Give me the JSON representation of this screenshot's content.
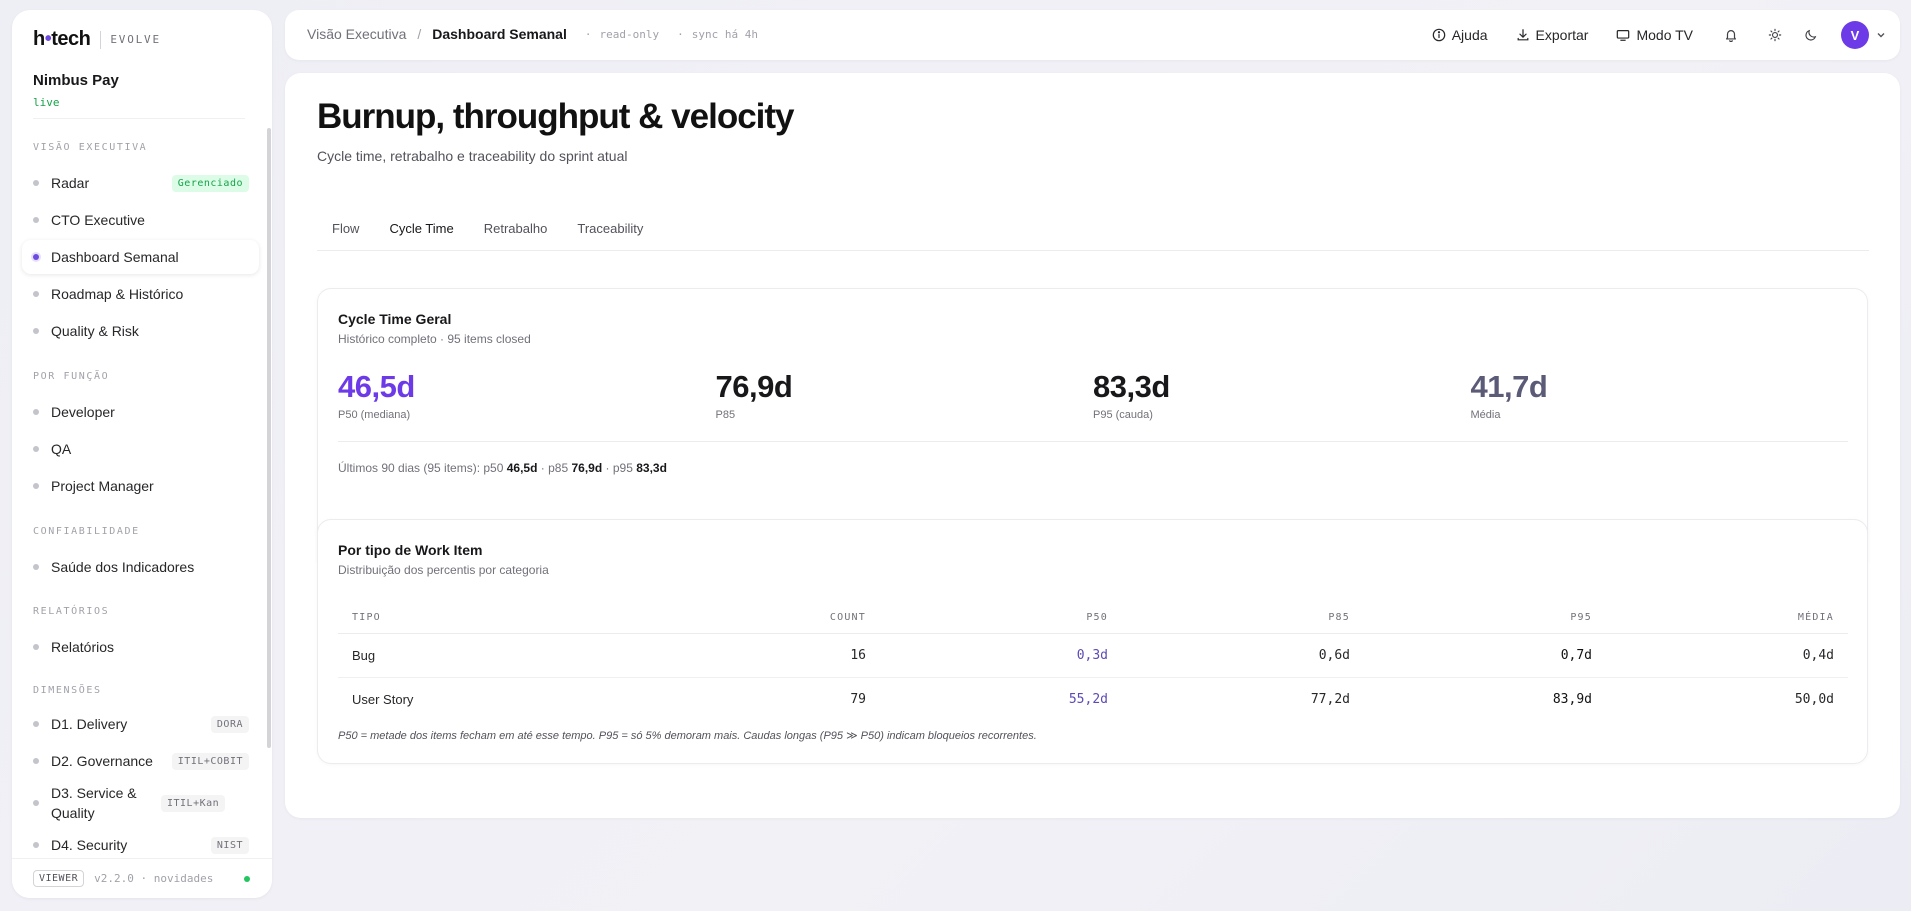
{
  "brand": {
    "logo_text": "h",
    "logo_dot": "•",
    "logo_rest": "tech",
    "suffix": "EVOLVE"
  },
  "org": {
    "name": "Nimbus Pay",
    "status": "live"
  },
  "sidebar": {
    "sections": [
      {
        "title": "VISÃO EXECUTIVA"
      },
      {
        "title": "POR FUNÇÃO"
      },
      {
        "title": "CONFIABILIDADE"
      },
      {
        "title": "RELATÓRIOS"
      },
      {
        "title": "DIMENSÕES"
      }
    ],
    "items": [
      {
        "label": "Radar",
        "badge": "Gerenciado"
      },
      {
        "label": "CTO Executive"
      },
      {
        "label": "Dashboard Semanal",
        "active": true
      },
      {
        "label": "Roadmap & Histórico"
      },
      {
        "label": "Quality & Risk"
      },
      {
        "label": "Developer"
      },
      {
        "label": "QA"
      },
      {
        "label": "Project Manager"
      },
      {
        "label": "Saúde dos Indicadores"
      },
      {
        "label": "Relatórios"
      },
      {
        "label": "D1. Delivery",
        "badge": "DORA"
      },
      {
        "label": "D2. Governance",
        "badge": "ITIL+COBIT"
      },
      {
        "label": "D3. Service & Quality",
        "badge": "ITIL+Kan"
      },
      {
        "label": "D4. Security",
        "badge": "NIST"
      }
    ],
    "footer": {
      "role": "VIEWER",
      "version": "v2.2.0 · novidades"
    }
  },
  "header": {
    "breadcrumb_parent": "Visão Executiva",
    "breadcrumb_sep": "/",
    "breadcrumb_current": "Dashboard Semanal",
    "mode": "read-only",
    "sync": "sync há 4h",
    "help_label": "Ajuda",
    "export_label": "Exportar",
    "tv_label": "Modo TV",
    "avatar_initial": "V"
  },
  "page": {
    "title": "Burnup, throughput & velocity",
    "subtitle": "Cycle time, retrabalho e traceability do sprint atual",
    "tabs": [
      {
        "label": "Flow"
      },
      {
        "label": "Cycle Time",
        "active": true
      },
      {
        "label": "Retrabalho"
      },
      {
        "label": "Traceability"
      }
    ]
  },
  "cycle_time": {
    "title": "Cycle Time Geral",
    "subtitle": "Histórico completo · 95 items closed",
    "stats": [
      {
        "value": "46,5d",
        "label": "P50 (mediana)",
        "color": "#6d3ae8"
      },
      {
        "value": "76,9d",
        "label": "P85",
        "color": "#18181b"
      },
      {
        "value": "83,3d",
        "label": "P95 (cauda)",
        "color": "#18181b"
      },
      {
        "value": "41,7d",
        "label": "Média",
        "color": "#5b5b78"
      }
    ],
    "summary": {
      "prefix": "Últimos 90 dias (95 items): p50",
      "p50": "46,5d",
      "p85_label": "· p85",
      "p85": "76,9d",
      "p95_label": "· p95",
      "p95": "83,3d"
    }
  },
  "by_type": {
    "title": "Por tipo de Work Item",
    "subtitle": "Distribuição dos percentis por categoria",
    "columns": [
      "TIPO",
      "COUNT",
      "P50",
      "P85",
      "P95",
      "MÉDIA"
    ],
    "rows": [
      {
        "tipo": "Bug",
        "count": "16",
        "p50": "0,3d",
        "p85": "0,6d",
        "p95": "0,7d",
        "media": "0,4d"
      },
      {
        "tipo": "User Story",
        "count": "79",
        "p50": "55,2d",
        "p85": "77,2d",
        "p95": "83,9d",
        "media": "50,0d"
      }
    ],
    "note": "P50 = metade dos items fecham em até esse tempo. P95 = só 5% demoram mais. Caudas longas (P95 ≫ P50) indicam bloqueios recorrentes."
  },
  "colors": {
    "accent": "#6d3ae8",
    "live_green": "#16a34a",
    "p50_column": "#5b4bb5"
  }
}
